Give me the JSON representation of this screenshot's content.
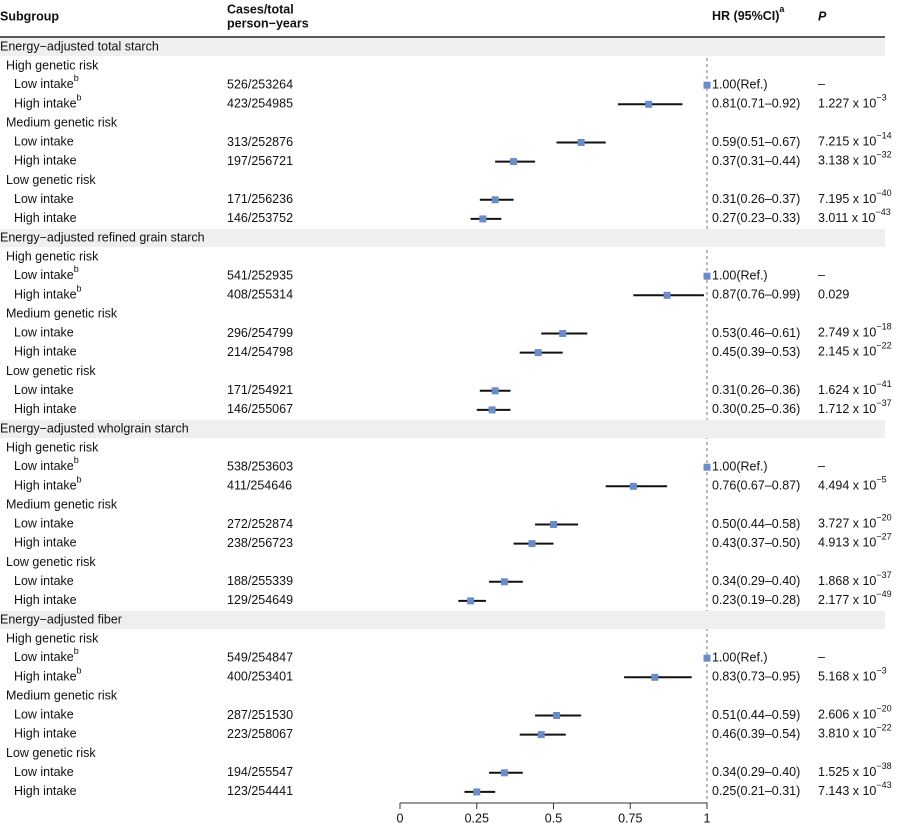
{
  "chart_data": {
    "type": "forest",
    "header": {
      "subgroup": "Subgroup",
      "cases_line1": "Cases/total",
      "cases_line2": "person−years",
      "hr": "HR (95%CI)",
      "hr_sup": "a",
      "p": "P"
    },
    "xlim": [
      0,
      1
    ],
    "xticks": [
      0,
      0.25,
      0.5,
      0.75,
      1
    ],
    "marker_color": "#6a8cc7",
    "ci_color": "#111111",
    "section_bg": "#eef0f0",
    "sections": [
      {
        "title": "Energy−adjusted total starch",
        "groups": [
          {
            "label": "High genetic risk",
            "rows": [
              {
                "label": "Low intake",
                "sup": "b",
                "cases": "526/253264",
                "hr": 1,
                "hr_label": "1.00(Ref.)",
                "p_label": "–"
              },
              {
                "label": "High intake",
                "sup": "b",
                "cases": "423/254985",
                "hr": 0.81,
                "lower": 0.71,
                "upper": 0.92,
                "hr_label": "0.81(0.71–0.92)",
                "p_label": "1.227 x 10",
                "p_exp": "−3"
              }
            ]
          },
          {
            "label": "Medium genetic risk",
            "rows": [
              {
                "label": "Low intake",
                "cases": "313/252876",
                "hr": 0.59,
                "lower": 0.51,
                "upper": 0.67,
                "hr_label": "0.59(0.51–0.67)",
                "p_label": "7.215 x 10",
                "p_exp": "−14"
              },
              {
                "label": "High intake",
                "cases": "197/256721",
                "hr": 0.37,
                "lower": 0.31,
                "upper": 0.44,
                "hr_label": "0.37(0.31–0.44)",
                "p_label": "3.138 x 10",
                "p_exp": "−32"
              }
            ]
          },
          {
            "label": "Low genetic risk",
            "rows": [
              {
                "label": "Low intake",
                "cases": "171/256236",
                "hr": 0.31,
                "lower": 0.26,
                "upper": 0.37,
                "hr_label": "0.31(0.26–0.37)",
                "p_label": "7.195 x 10",
                "p_exp": "−40"
              },
              {
                "label": "High intake",
                "cases": "146/253752",
                "hr": 0.27,
                "lower": 0.23,
                "upper": 0.33,
                "hr_label": "0.27(0.23–0.33)",
                "p_label": "3.011 x 10",
                "p_exp": "−43"
              }
            ]
          }
        ]
      },
      {
        "title": "Energy−adjusted refined grain starch",
        "groups": [
          {
            "label": "High genetic risk",
            "rows": [
              {
                "label": "Low intake",
                "sup": "b",
                "cases": "541/252935",
                "hr": 1,
                "hr_label": "1.00(Ref.)",
                "p_label": "–"
              },
              {
                "label": "High intake",
                "sup": "b",
                "cases": "408/255314",
                "hr": 0.87,
                "lower": 0.76,
                "upper": 0.99,
                "hr_label": "0.87(0.76–0.99)",
                "p_label": "0.029"
              }
            ]
          },
          {
            "label": "Medium genetic risk",
            "rows": [
              {
                "label": "Low intake",
                "cases": "296/254799",
                "hr": 0.53,
                "lower": 0.46,
                "upper": 0.61,
                "hr_label": "0.53(0.46–0.61)",
                "p_label": "2.749 x 10",
                "p_exp": "−18"
              },
              {
                "label": "High intake",
                "cases": "214/254798",
                "hr": 0.45,
                "lower": 0.39,
                "upper": 0.53,
                "hr_label": "0.45(0.39–0.53)",
                "p_label": "2.145 x 10",
                "p_exp": "−22"
              }
            ]
          },
          {
            "label": "Low genetic risk",
            "rows": [
              {
                "label": "Low intake",
                "cases": "171/254921",
                "hr": 0.31,
                "lower": 0.26,
                "upper": 0.36,
                "hr_label": "0.31(0.26–0.36)",
                "p_label": "1.624 x 10",
                "p_exp": "−41"
              },
              {
                "label": "High intake",
                "cases": "146/255067",
                "hr": 0.3,
                "lower": 0.25,
                "upper": 0.36,
                "hr_label": "0.30(0.25–0.36)",
                "p_label": "1.712 x 10",
                "p_exp": "−37"
              }
            ]
          }
        ]
      },
      {
        "title": "Energy−adjusted wholgrain starch",
        "groups": [
          {
            "label": "High genetic risk",
            "rows": [
              {
                "label": "Low intake",
                "sup": "b",
                "cases": "538/253603",
                "hr": 1,
                "hr_label": "1.00(Ref.)",
                "p_label": "–"
              },
              {
                "label": "High intake",
                "sup": "b",
                "cases": "411/254646",
                "hr": 0.76,
                "lower": 0.67,
                "upper": 0.87,
                "hr_label": "0.76(0.67–0.87)",
                "p_label": "4.494 x 10",
                "p_exp": "−5"
              }
            ]
          },
          {
            "label": "Medium genetic risk",
            "rows": [
              {
                "label": "Low intake",
                "cases": "272/252874",
                "hr": 0.5,
                "lower": 0.44,
                "upper": 0.58,
                "hr_label": "0.50(0.44–0.58)",
                "p_label": "3.727 x 10",
                "p_exp": "−20"
              },
              {
                "label": "High intake",
                "cases": "238/256723",
                "hr": 0.43,
                "lower": 0.37,
                "upper": 0.5,
                "hr_label": "0.43(0.37–0.50)",
                "p_label": "4.913 x 10",
                "p_exp": "−27"
              }
            ]
          },
          {
            "label": "Low genetic risk",
            "rows": [
              {
                "label": "Low intake",
                "cases": "188/255339",
                "hr": 0.34,
                "lower": 0.29,
                "upper": 0.4,
                "hr_label": "0.34(0.29–0.40)",
                "p_label": "1.868 x 10",
                "p_exp": "−37"
              },
              {
                "label": "High intake",
                "cases": "129/254649",
                "hr": 0.23,
                "lower": 0.19,
                "upper": 0.28,
                "hr_label": "0.23(0.19–0.28)",
                "p_label": "2.177 x 10",
                "p_exp": "−49"
              }
            ]
          }
        ]
      },
      {
        "title": "Energy−adjusted fiber",
        "groups": [
          {
            "label": "High genetic risk",
            "rows": [
              {
                "label": "Low intake",
                "sup": "b",
                "cases": "549/254847",
                "hr": 1,
                "hr_label": "1.00(Ref.)",
                "p_label": "–"
              },
              {
                "label": "High intake",
                "sup": "b",
                "cases": "400/253401",
                "hr": 0.83,
                "lower": 0.73,
                "upper": 0.95,
                "hr_label": "0.83(0.73–0.95)",
                "p_label": "5.168 x 10",
                "p_exp": "−3"
              }
            ]
          },
          {
            "label": "Medium genetic risk",
            "rows": [
              {
                "label": "Low intake",
                "cases": "287/251530",
                "hr": 0.51,
                "lower": 0.44,
                "upper": 0.59,
                "hr_label": "0.51(0.44–0.59)",
                "p_label": "2.606 x 10",
                "p_exp": "−20"
              },
              {
                "label": "High intake",
                "cases": "223/258067",
                "hr": 0.46,
                "lower": 0.39,
                "upper": 0.54,
                "hr_label": "0.46(0.39–0.54)",
                "p_label": "3.810 x 10",
                "p_exp": "−22"
              }
            ]
          },
          {
            "label": "Low genetic risk",
            "rows": [
              {
                "label": "Low intake",
                "cases": "194/255547",
                "hr": 0.34,
                "lower": 0.29,
                "upper": 0.4,
                "hr_label": "0.34(0.29–0.40)",
                "p_label": "1.525 x 10",
                "p_exp": "−38"
              },
              {
                "label": "High intake",
                "cases": "123/254441",
                "hr": 0.25,
                "lower": 0.21,
                "upper": 0.31,
                "hr_label": "0.25(0.21–0.31)",
                "p_label": "7.143 x 10",
                "p_exp": "−43"
              }
            ]
          }
        ]
      }
    ]
  }
}
